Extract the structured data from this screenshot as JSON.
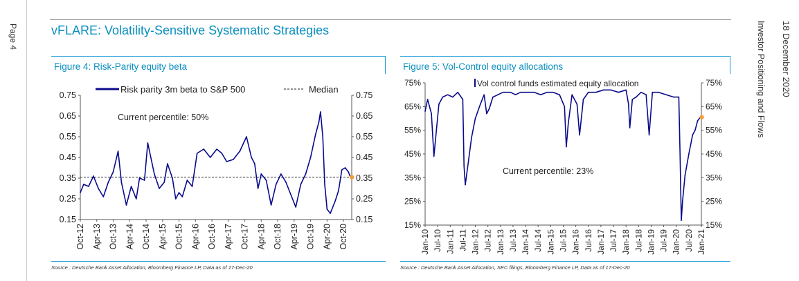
{
  "page": {
    "page_label": "Page 4",
    "date": "18 December 2020",
    "report_title": "Investor Positioning and Flows"
  },
  "header": {
    "title": "vFLARE: Volatility-Sensitive Systematic Strategies"
  },
  "figures": {
    "fig4": {
      "title": "Figure 4: Risk-Parity equity beta",
      "source": "Source : Deutsche Bank Asset Allocation, Bloomberg Finance LP, Data as of 17-Dec-20"
    },
    "fig5": {
      "title": "Figure 5: Vol-Control equity allocations",
      "source": "Source : Deutsche Bank Asset Allocation, SEC filings, Bloomberg Finance LP, Data as of 17-Dec-20"
    }
  },
  "colors": {
    "series": "#0a0a8c",
    "marker": "#f39c3a",
    "accent": "#1b9ad6",
    "title": "#0a8fc0"
  },
  "chart_data": [
    {
      "type": "line",
      "title": "Figure 4: Risk-Parity equity beta",
      "legend": [
        "Risk parity 3m beta to S&P 500",
        "Median"
      ],
      "annotation": "Current percentile: 50%",
      "median": 0.355,
      "current": 0.355,
      "ylim": [
        0.15,
        0.75
      ],
      "yticks": [
        "0.15",
        "0.25",
        "0.35",
        "0.45",
        "0.55",
        "0.65",
        "0.75"
      ],
      "xlim": [
        2012.75,
        2021.0
      ],
      "xtick_labels": [
        "Oct-12",
        "Apr-13",
        "Oct-13",
        "Apr-14",
        "Oct-14",
        "Apr-15",
        "Oct-15",
        "Apr-16",
        "Oct-16",
        "Apr-17",
        "Oct-17",
        "Apr-18",
        "Oct-18",
        "Apr-19",
        "Oct-19",
        "Apr-20",
        "Oct-20"
      ],
      "x": [
        2012.75,
        2012.85,
        2013.0,
        2013.15,
        2013.3,
        2013.45,
        2013.6,
        2013.75,
        2013.9,
        2014.0,
        2014.15,
        2014.3,
        2014.45,
        2014.55,
        2014.7,
        2014.8,
        2015.0,
        2015.15,
        2015.3,
        2015.4,
        2015.55,
        2015.65,
        2015.75,
        2015.85,
        2016.0,
        2016.15,
        2016.3,
        2016.5,
        2016.7,
        2016.9,
        2017.05,
        2017.2,
        2017.4,
        2017.6,
        2017.8,
        2017.95,
        2018.05,
        2018.15,
        2018.25,
        2018.4,
        2018.55,
        2018.7,
        2018.85,
        2019.0,
        2019.15,
        2019.3,
        2019.45,
        2019.6,
        2019.75,
        2019.9,
        2020.0,
        2020.05,
        2020.12,
        2020.18,
        2020.25,
        2020.35,
        2020.5,
        2020.6,
        2020.7,
        2020.8,
        2020.9,
        2020.96
      ],
      "values": [
        0.28,
        0.32,
        0.31,
        0.36,
        0.3,
        0.26,
        0.33,
        0.38,
        0.48,
        0.33,
        0.22,
        0.31,
        0.25,
        0.35,
        0.34,
        0.52,
        0.37,
        0.3,
        0.33,
        0.42,
        0.35,
        0.25,
        0.28,
        0.26,
        0.34,
        0.31,
        0.47,
        0.49,
        0.45,
        0.49,
        0.47,
        0.43,
        0.44,
        0.48,
        0.55,
        0.45,
        0.42,
        0.3,
        0.37,
        0.34,
        0.22,
        0.32,
        0.37,
        0.33,
        0.27,
        0.21,
        0.32,
        0.37,
        0.45,
        0.56,
        0.62,
        0.67,
        0.55,
        0.32,
        0.2,
        0.18,
        0.24,
        0.29,
        0.39,
        0.4,
        0.38,
        0.355
      ]
    },
    {
      "type": "line",
      "title": "Figure 5: Vol-Control equity allocations",
      "legend": [
        "Vol control funds estimated equity allocation"
      ],
      "annotation": "Current percentile: 23%",
      "current": 0.605,
      "ylim": [
        0.15,
        0.75
      ],
      "yticks": [
        "15%",
        "25%",
        "35%",
        "45%",
        "55%",
        "65%",
        "75%"
      ],
      "xlim": [
        2010.0,
        2021.0
      ],
      "xtick_labels": [
        "Jan-10",
        "Jul-10",
        "Jan-11",
        "Jul-11",
        "Jan-12",
        "Jul-12",
        "Jan-13",
        "Jul-13",
        "Jan-14",
        "Jul-14",
        "Jan-15",
        "Jul-15",
        "Jan-16",
        "Jul-16",
        "Jan-17",
        "Jul-17",
        "Jan-18",
        "Jul-18",
        "Jan-19",
        "Jul-19",
        "Jan-20",
        "Jul-20",
        "Jan-21"
      ],
      "x": [
        2010.0,
        2010.1,
        2010.25,
        2010.35,
        2010.45,
        2010.55,
        2010.7,
        2010.9,
        2011.1,
        2011.3,
        2011.5,
        2011.55,
        2011.6,
        2011.7,
        2011.85,
        2012.0,
        2012.2,
        2012.35,
        2012.45,
        2012.55,
        2012.7,
        2012.9,
        2013.1,
        2013.4,
        2013.6,
        2013.8,
        2014.1,
        2014.35,
        2014.6,
        2014.85,
        2015.1,
        2015.35,
        2015.55,
        2015.62,
        2015.7,
        2015.85,
        2016.05,
        2016.15,
        2016.3,
        2016.5,
        2016.8,
        2017.1,
        2017.4,
        2017.7,
        2018.0,
        2018.1,
        2018.15,
        2018.25,
        2018.4,
        2018.6,
        2018.8,
        2018.92,
        2018.97,
        2019.05,
        2019.3,
        2019.6,
        2019.9,
        2020.1,
        2020.15,
        2020.2,
        2020.25,
        2020.35,
        2020.5,
        2020.65,
        2020.75,
        2020.85,
        2020.96
      ],
      "values": [
        0.63,
        0.68,
        0.62,
        0.44,
        0.55,
        0.66,
        0.69,
        0.7,
        0.69,
        0.71,
        0.68,
        0.4,
        0.32,
        0.4,
        0.52,
        0.6,
        0.66,
        0.7,
        0.62,
        0.64,
        0.69,
        0.7,
        0.71,
        0.71,
        0.7,
        0.71,
        0.71,
        0.71,
        0.7,
        0.71,
        0.71,
        0.7,
        0.65,
        0.48,
        0.58,
        0.7,
        0.66,
        0.53,
        0.68,
        0.71,
        0.71,
        0.72,
        0.72,
        0.71,
        0.72,
        0.66,
        0.56,
        0.68,
        0.69,
        0.71,
        0.7,
        0.53,
        0.6,
        0.71,
        0.71,
        0.7,
        0.69,
        0.69,
        0.45,
        0.17,
        0.25,
        0.36,
        0.45,
        0.53,
        0.55,
        0.59,
        0.605
      ]
    }
  ]
}
